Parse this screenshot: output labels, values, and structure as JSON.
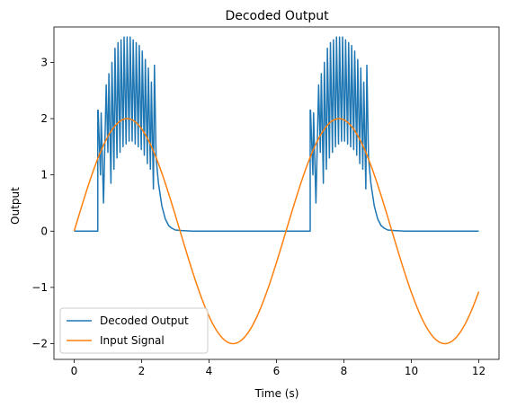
{
  "chart_data": {
    "type": "line",
    "title": "Decoded Output",
    "xlabel": "Time (s)",
    "ylabel": "Output",
    "xlim": [
      -0.6,
      12.6
    ],
    "ylim": [
      -2.28,
      3.63
    ],
    "xticks": [
      0,
      2,
      4,
      6,
      8,
      10,
      12
    ],
    "xtick_labels": [
      "0",
      "2",
      "4",
      "6",
      "8",
      "10",
      "12"
    ],
    "yticks": [
      -2,
      -1,
      0,
      1,
      2,
      3
    ],
    "ytick_labels": [
      "−2",
      "−1",
      "0",
      "1",
      "2",
      "3"
    ],
    "grid": false,
    "legend": "lower-left",
    "series": [
      {
        "name": "Decoded Output",
        "color": "#1f77b4",
        "x": [
          0,
          0.7,
          0.7,
          0.71,
          0.78,
          0.8,
          0.87,
          0.95,
          1.0,
          1.03,
          1.09,
          1.12,
          1.18,
          1.21,
          1.27,
          1.3,
          1.36,
          1.39,
          1.45,
          1.48,
          1.54,
          1.57,
          1.63,
          1.66,
          1.72,
          1.75,
          1.81,
          1.84,
          1.9,
          1.93,
          1.99,
          2.02,
          2.08,
          2.11,
          2.17,
          2.2,
          2.26,
          2.29,
          2.35,
          2.38,
          2.43,
          2.5,
          2.6,
          2.7,
          2.8,
          2.9,
          3.0,
          3.2,
          3.5,
          4.0,
          5.0,
          6.0,
          7.0,
          7.0,
          7.01,
          7.08,
          7.1,
          7.17,
          7.25,
          7.3,
          7.33,
          7.39,
          7.42,
          7.48,
          7.51,
          7.57,
          7.6,
          7.66,
          7.69,
          7.75,
          7.78,
          7.84,
          7.87,
          7.93,
          7.96,
          8.02,
          8.05,
          8.11,
          8.14,
          8.2,
          8.23,
          8.29,
          8.32,
          8.38,
          8.41,
          8.47,
          8.5,
          8.56,
          8.59,
          8.65,
          8.68,
          8.73,
          8.8,
          8.9,
          9.0,
          9.1,
          9.2,
          9.3,
          9.5,
          9.8,
          10.3,
          11.0,
          12.0
        ],
        "y": [
          0,
          0,
          2.15,
          2.15,
          1.0,
          2.1,
          0.5,
          2.6,
          1.4,
          2.8,
          0.85,
          3.0,
          1.1,
          3.25,
          1.3,
          3.35,
          1.4,
          3.4,
          1.5,
          3.45,
          1.55,
          3.45,
          1.6,
          3.45,
          1.6,
          3.4,
          1.55,
          3.35,
          1.5,
          3.3,
          1.45,
          3.2,
          1.35,
          3.05,
          1.2,
          2.9,
          1.1,
          2.65,
          0.75,
          2.95,
          1.3,
          0.85,
          0.45,
          0.22,
          0.1,
          0.05,
          0.02,
          0.01,
          0,
          0,
          0,
          0,
          0,
          2.15,
          2.15,
          1.0,
          2.1,
          0.5,
          2.6,
          1.4,
          2.8,
          0.85,
          3.0,
          1.1,
          3.25,
          1.3,
          3.35,
          1.4,
          3.4,
          1.5,
          3.45,
          1.55,
          3.45,
          1.6,
          3.45,
          1.6,
          3.4,
          1.55,
          3.35,
          1.5,
          3.3,
          1.45,
          3.2,
          1.35,
          3.05,
          1.2,
          2.9,
          1.1,
          2.65,
          0.75,
          2.95,
          1.3,
          0.85,
          0.45,
          0.22,
          0.1,
          0.05,
          0.02,
          0.01,
          0,
          0,
          0,
          0
        ]
      },
      {
        "name": "Input Signal",
        "color": "#ff7f0e",
        "function": "2*sin(t)",
        "x_range": [
          0,
          12
        ]
      }
    ]
  }
}
